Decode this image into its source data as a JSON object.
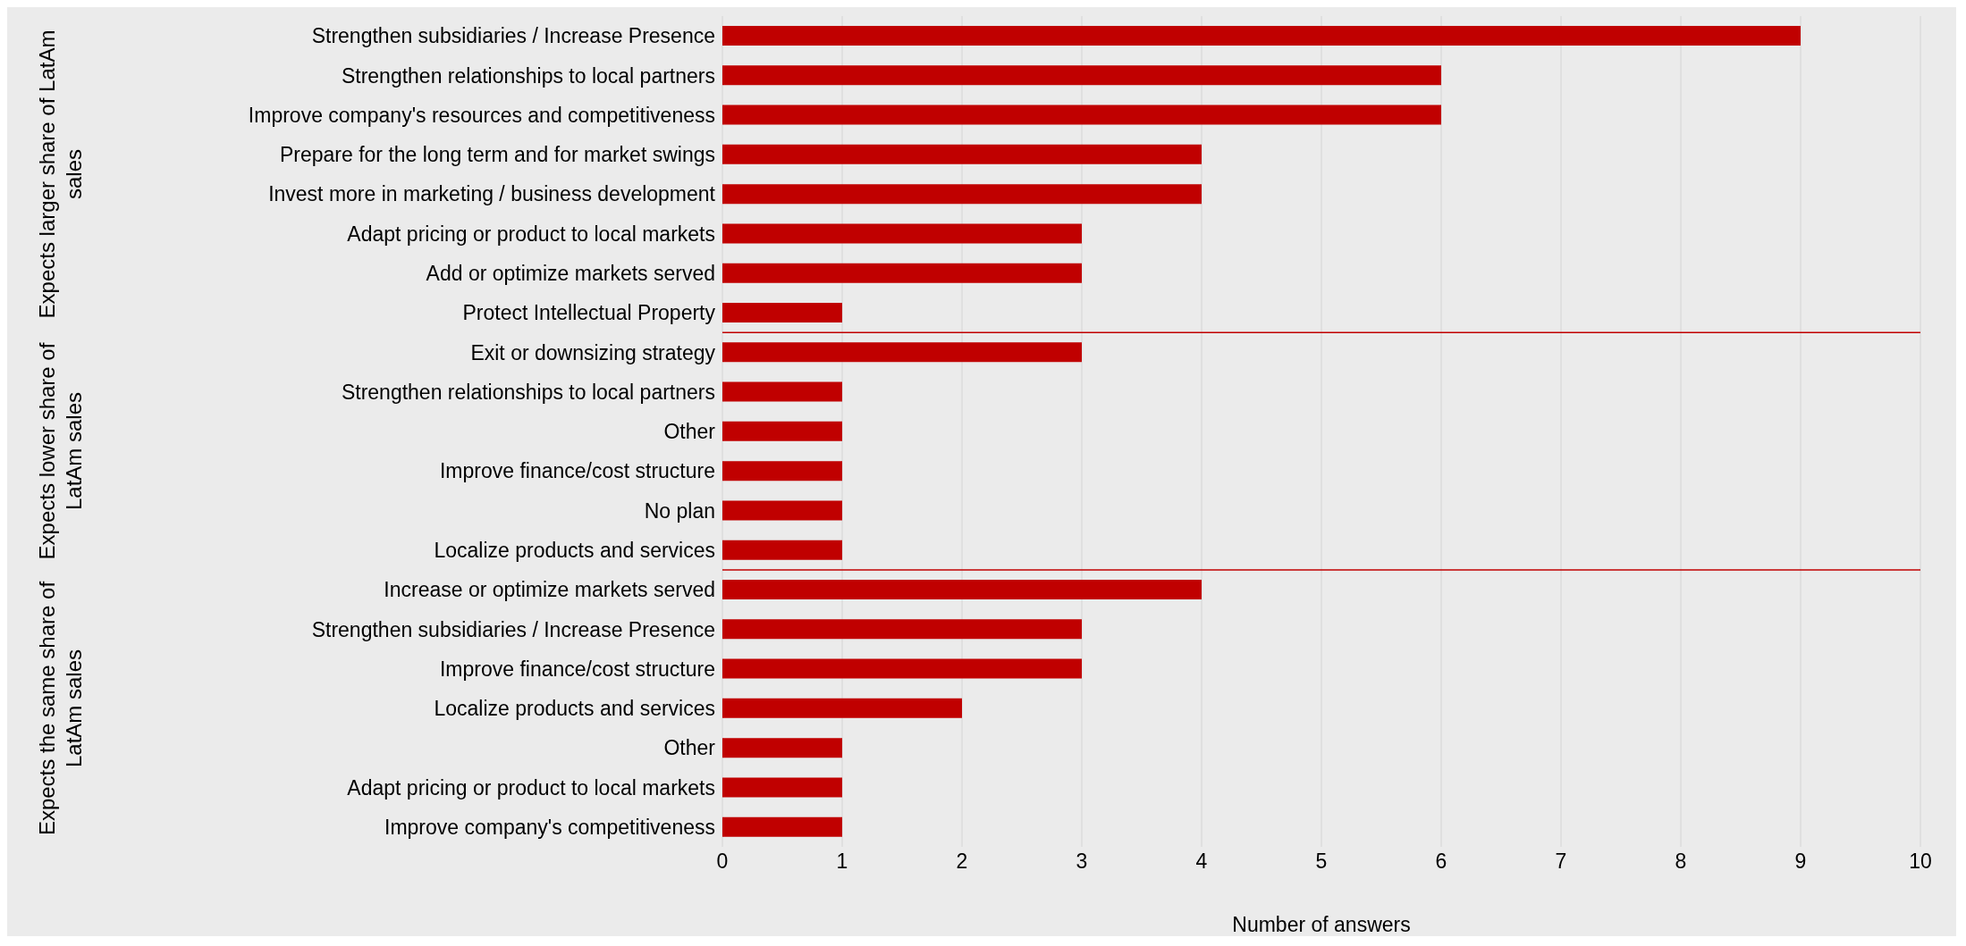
{
  "chart_data": {
    "type": "bar",
    "orientation": "horizontal",
    "categories": [
      "Strengthen subsidiaries / Increase Presence",
      "Strengthen relationships to local partners",
      "Improve company's resources and competitiveness",
      "Prepare for the long term and for market swings",
      "Invest more in marketing / business development",
      "Adapt pricing or product to local markets",
      "Add or optimize markets served",
      "Protect Intellectual Property",
      "Exit or downsizing strategy",
      "Strengthen relationships to local partners",
      "Other",
      "Improve finance/cost structure",
      "No plan",
      "Localize products and services",
      "Increase or optimize markets served",
      "Strengthen subsidiaries / Increase Presence",
      "Improve finance/cost structure",
      "Localize products and services",
      "Other",
      "Adapt pricing or product to local markets",
      "Improve company's competitiveness"
    ],
    "values": [
      9,
      6,
      6,
      4,
      4,
      3,
      3,
      1,
      3,
      1,
      1,
      1,
      1,
      1,
      4,
      3,
      3,
      2,
      1,
      1,
      1
    ],
    "color": "#c00000",
    "xlabel": "Number of answers",
    "xlim": [
      0,
      10
    ],
    "xticks": [
      0,
      1,
      2,
      3,
      4,
      5,
      6,
      7,
      8,
      9,
      10
    ],
    "grid": "x",
    "annotations": [
      "Expects larger share of LatAm sales",
      "Expects lower share of LatAm sales",
      "Expects the same share of LatAm sales"
    ]
  }
}
